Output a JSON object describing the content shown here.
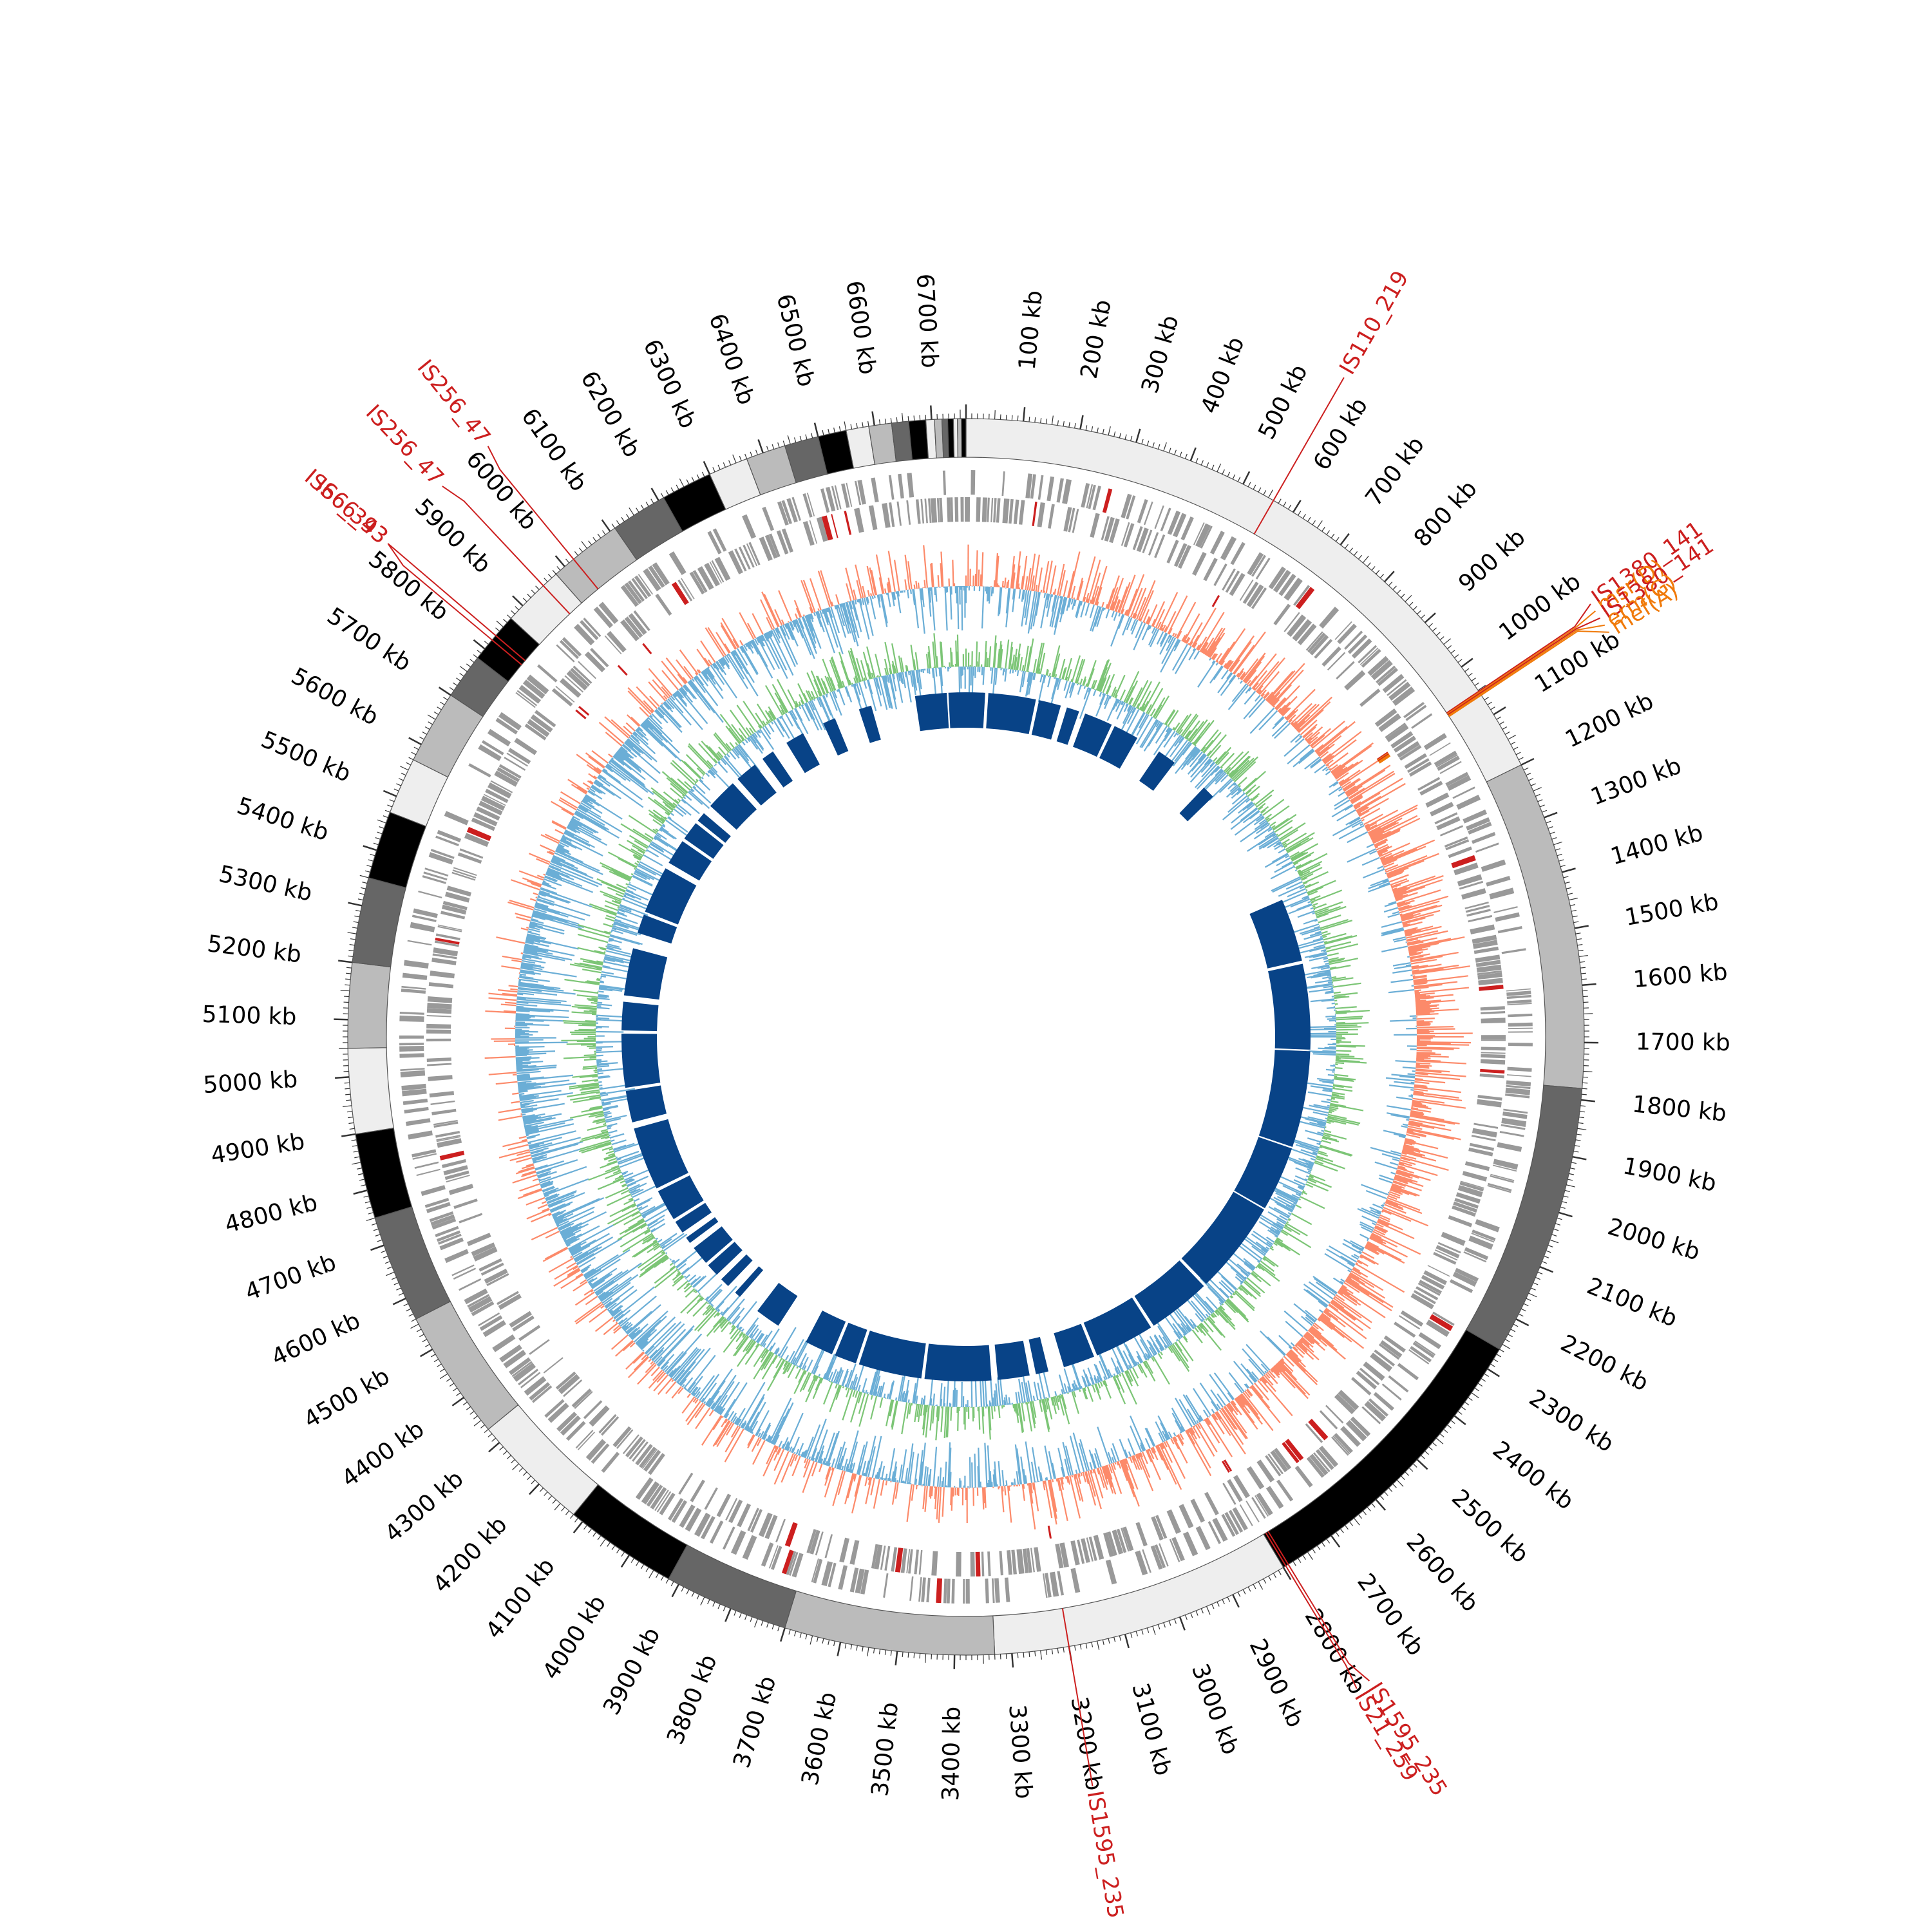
{
  "chart_data": {
    "type": "circular-genome-map",
    "genome_length_kb": 6760,
    "tick_labels": [
      "100 kb",
      "200 kb",
      "300 kb",
      "400 kb",
      "500 kb",
      "600 kb",
      "700 kb",
      "800 kb",
      "900 kb",
      "1000 kb",
      "1100 kb",
      "1200 kb",
      "1300 kb",
      "1400 kb",
      "1500 kb",
      "1600 kb",
      "1700 kb",
      "1800 kb",
      "1900 kb",
      "2000 kb",
      "2100 kb",
      "2200 kb",
      "2300 kb",
      "2400 kb",
      "2500 kb",
      "2600 kb",
      "2700 kb",
      "2800 kb",
      "2900 kb",
      "3000 kb",
      "3100 kb",
      "3200 kb",
      "3300 kb",
      "3400 kb",
      "3500 kb",
      "3600 kb",
      "3700 kb",
      "3800 kb",
      "3900 kb",
      "4000 kb",
      "4100 kb",
      "4200 kb",
      "4300 kb",
      "4400 kb",
      "4500 kb",
      "4600 kb",
      "4700 kb",
      "4800 kb",
      "4900 kb",
      "5000 kb",
      "5100 kb",
      "5200 kb",
      "5300 kb",
      "5400 kb",
      "5500 kb",
      "5600 kb",
      "5700 kb",
      "5800 kb",
      "5900 kb",
      "6000 kb",
      "6100 kb",
      "6200 kb",
      "6300 kb",
      "6400 kb",
      "6500 kb",
      "6600 kb",
      "6700 kb"
    ],
    "tick_positions_kb": [
      100,
      200,
      300,
      400,
      500,
      600,
      700,
      800,
      900,
      1000,
      1100,
      1200,
      1300,
      1400,
      1500,
      1600,
      1700,
      1800,
      1900,
      2000,
      2100,
      2200,
      2300,
      2400,
      2500,
      2600,
      2700,
      2800,
      2900,
      3000,
      3100,
      3200,
      3300,
      3400,
      3500,
      3600,
      3700,
      3800,
      3900,
      4000,
      4100,
      4200,
      4300,
      4400,
      4500,
      4600,
      4700,
      4800,
      4900,
      5000,
      5100,
      5200,
      5300,
      5400,
      5500,
      5600,
      5700,
      5800,
      5900,
      6000,
      6100,
      6200,
      6300,
      6400,
      6500,
      6600,
      6700
    ],
    "contigs": [
      {
        "start": 0,
        "end": 1200,
        "shade": "#eeeeee"
      },
      {
        "start": 1200,
        "end": 1780,
        "shade": "#bbbbbb"
      },
      {
        "start": 1780,
        "end": 2260,
        "shade": "#666666"
      },
      {
        "start": 2260,
        "end": 2800,
        "shade": "#000000"
      },
      {
        "start": 2800,
        "end": 3330,
        "shade": "#eeeeee"
      },
      {
        "start": 3330,
        "end": 3700,
        "shade": "#bbbbbb"
      },
      {
        "start": 3700,
        "end": 3920,
        "shade": "#666666"
      },
      {
        "start": 3920,
        "end": 4120,
        "shade": "#000000"
      },
      {
        "start": 4120,
        "end": 4330,
        "shade": "#eeeeee"
      },
      {
        "start": 4330,
        "end": 4560,
        "shade": "#bbbbbb"
      },
      {
        "start": 4560,
        "end": 4750,
        "shade": "#666666"
      },
      {
        "start": 4750,
        "end": 4900,
        "shade": "#000000"
      },
      {
        "start": 4900,
        "end": 5050,
        "shade": "#eeeeee"
      },
      {
        "start": 5050,
        "end": 5200,
        "shade": "#bbbbbb"
      },
      {
        "start": 5200,
        "end": 5350,
        "shade": "#666666"
      },
      {
        "start": 5350,
        "end": 5470,
        "shade": "#000000"
      },
      {
        "start": 5470,
        "end": 5570,
        "shade": "#eeeeee"
      },
      {
        "start": 5570,
        "end": 5700,
        "shade": "#bbbbbb"
      },
      {
        "start": 5700,
        "end": 5780,
        "shade": "#666666"
      },
      {
        "start": 5780,
        "end": 5870,
        "shade": "#000000"
      },
      {
        "start": 5870,
        "end": 5980,
        "shade": "#eeeeee"
      },
      {
        "start": 5980,
        "end": 6110,
        "shade": "#bbbbbb"
      },
      {
        "start": 6110,
        "end": 6210,
        "shade": "#666666"
      },
      {
        "start": 6210,
        "end": 6300,
        "shade": "#000000"
      },
      {
        "start": 6300,
        "end": 6370,
        "shade": "#eeeeee"
      },
      {
        "start": 6370,
        "end": 6440,
        "shade": "#bbbbbb"
      },
      {
        "start": 6440,
        "end": 6500,
        "shade": "#666666"
      },
      {
        "start": 6500,
        "end": 6550,
        "shade": "#000000"
      },
      {
        "start": 6550,
        "end": 6590,
        "shade": "#eeeeee"
      },
      {
        "start": 6590,
        "end": 6630,
        "shade": "#bbbbbb"
      },
      {
        "start": 6630,
        "end": 6660,
        "shade": "#666666"
      },
      {
        "start": 6660,
        "end": 6690,
        "shade": "#000000"
      },
      {
        "start": 6690,
        "end": 6705,
        "shade": "#eeeeee"
      },
      {
        "start": 6705,
        "end": 6718,
        "shade": "#bbbbbb"
      },
      {
        "start": 6718,
        "end": 6728,
        "shade": "#666666"
      },
      {
        "start": 6728,
        "end": 6738,
        "shade": "#000000"
      },
      {
        "start": 6738,
        "end": 6745,
        "shade": "#eeeeee"
      },
      {
        "start": 6745,
        "end": 6752,
        "shade": "#bbbbbb"
      },
      {
        "start": 6752,
        "end": 6760,
        "shade": "#000000"
      }
    ],
    "annotations": [
      {
        "label": "IS110_219",
        "position_kb": 560,
        "type": "insertion_sequence"
      },
      {
        "label": "IS1380_141",
        "position_kb": 1052,
        "type": "insertion_sequence"
      },
      {
        "label": "msr(D)",
        "position_kb": 1054,
        "type": "resistance_gene"
      },
      {
        "label": "IS1380_141",
        "position_kb": 1056,
        "type": "insertion_sequence"
      },
      {
        "label": "erm(G)",
        "position_kb": 1058,
        "type": "resistance_gene"
      },
      {
        "label": "mef(A)",
        "position_kb": 1060,
        "type": "resistance_gene"
      },
      {
        "label": "IS1595_235",
        "position_kb": 2790,
        "type": "insertion_sequence"
      },
      {
        "label": "IS21_259",
        "position_kb": 2795,
        "type": "insertion_sequence"
      },
      {
        "label": "IS1595_235",
        "position_kb": 3200,
        "type": "insertion_sequence"
      },
      {
        "label": "IS66_393",
        "position_kb": 5820,
        "type": "insertion_sequence"
      },
      {
        "label": "IS66_43",
        "position_kb": 5830,
        "type": "insertion_sequence"
      },
      {
        "label": "IS256_47",
        "position_kb": 5950,
        "type": "insertion_sequence"
      },
      {
        "label": "IS256_47",
        "position_kb": 6020,
        "type": "insertion_sequence"
      }
    ],
    "blocks": [
      {
        "start": 0,
        "end": 60
      },
      {
        "start": 70,
        "end": 220
      },
      {
        "start": 230,
        "end": 300
      },
      {
        "start": 320,
        "end": 360
      },
      {
        "start": 380,
        "end": 470
      },
      {
        "start": 480,
        "end": 560
      },
      {
        "start": 640,
        "end": 700
      },
      {
        "start": 820,
        "end": 860
      },
      {
        "start": 1250,
        "end": 1450
      },
      {
        "start": 1460,
        "end": 1730
      },
      {
        "start": 1735,
        "end": 2040
      },
      {
        "start": 2045,
        "end": 2250
      },
      {
        "start": 2255,
        "end": 2550
      },
      {
        "start": 2560,
        "end": 2760
      },
      {
        "start": 2770,
        "end": 2960
      },
      {
        "start": 2970,
        "end": 3070
      },
      {
        "start": 3120,
        "end": 3160
      },
      {
        "start": 3180,
        "end": 3280
      },
      {
        "start": 3300,
        "end": 3510
      },
      {
        "start": 3520,
        "end": 3720
      },
      {
        "start": 3730,
        "end": 3800
      },
      {
        "start": 3810,
        "end": 3900
      },
      {
        "start": 4000,
        "end": 4080
      },
      {
        "start": 4150,
        "end": 4170
      },
      {
        "start": 4200,
        "end": 4230
      },
      {
        "start": 4250,
        "end": 4290
      },
      {
        "start": 4300,
        "end": 4360
      },
      {
        "start": 4380,
        "end": 4400
      },
      {
        "start": 4420,
        "end": 4460
      },
      {
        "start": 4470,
        "end": 4570
      },
      {
        "start": 4580,
        "end": 4780
      },
      {
        "start": 4800,
        "end": 4900
      },
      {
        "start": 4910,
        "end": 5080
      },
      {
        "start": 5090,
        "end": 5180
      },
      {
        "start": 5200,
        "end": 5350
      },
      {
        "start": 5400,
        "end": 5460
      },
      {
        "start": 5470,
        "end": 5620
      },
      {
        "start": 5640,
        "end": 5720
      },
      {
        "start": 5730,
        "end": 5790
      },
      {
        "start": 5800,
        "end": 5830
      },
      {
        "start": 5860,
        "end": 5960
      },
      {
        "start": 5980,
        "end": 6050
      },
      {
        "start": 6080,
        "end": 6120
      },
      {
        "start": 6170,
        "end": 6230
      },
      {
        "start": 6300,
        "end": 6340
      },
      {
        "start": 6420,
        "end": 6460
      },
      {
        "start": 6600,
        "end": 6700
      },
      {
        "start": 6705,
        "end": 6760
      }
    ],
    "tracks": [
      "contigs",
      "genes",
      "gc_skew",
      "gc_content",
      "blast_blocks"
    ],
    "colors": {
      "insertion_sequence": "#cc1f1f",
      "resistance_gene": "#f07a0a",
      "genes": "#999999",
      "skew_positive": "#fc8a6a",
      "skew_negative": "#6baed6",
      "gc_content_above": "#7cc576",
      "gc_content_below": "#6baed6",
      "blocks": "#084387"
    }
  }
}
